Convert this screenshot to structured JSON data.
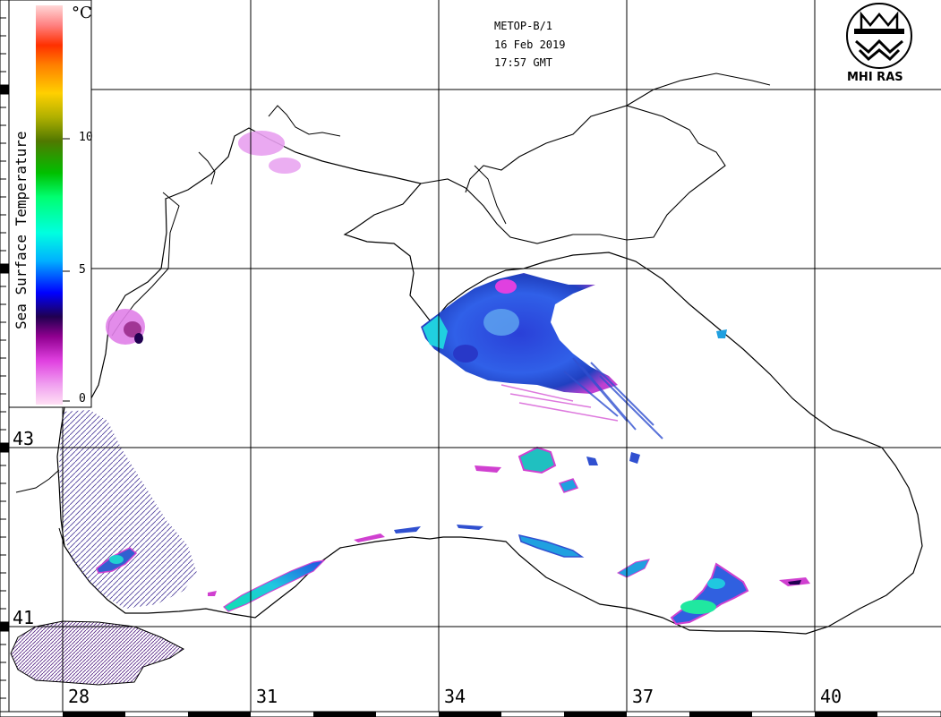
{
  "satellite": {
    "name": "METOP-B/1",
    "date": "16 Feb 2019",
    "time": "17:57 GMT"
  },
  "logo": {
    "text": "MHI RAS",
    "icon": "mhi-ras-emblem-icon"
  },
  "legend": {
    "title": "Sea Surface Temperature",
    "unit": "°C",
    "ticks": [
      "10",
      "5",
      "0"
    ],
    "range_celsius": [
      0,
      15
    ],
    "colors": [
      "#ffe0f4",
      "#f0a0f0",
      "#e040e0",
      "#900090",
      "#200050",
      "#0000ff",
      "#00b0ff",
      "#00ffe0",
      "#00ff70",
      "#00c000",
      "#507800",
      "#b0b000",
      "#ffd000",
      "#ff8000",
      "#ff3000",
      "#ff8080",
      "#ffd8d8"
    ]
  },
  "grid": {
    "latitudes": [
      "43",
      "41"
    ],
    "longitudes": [
      "28",
      "31",
      "34",
      "37",
      "40"
    ]
  },
  "map": {
    "land_color": "#ffffff",
    "coast_color": "#000000",
    "sst_colors": {
      "coldest": "#e8a0f0",
      "cold": "#e040e0",
      "mid": "#2030e0",
      "warm": "#20e0e0",
      "warmest": "#20e890"
    }
  }
}
